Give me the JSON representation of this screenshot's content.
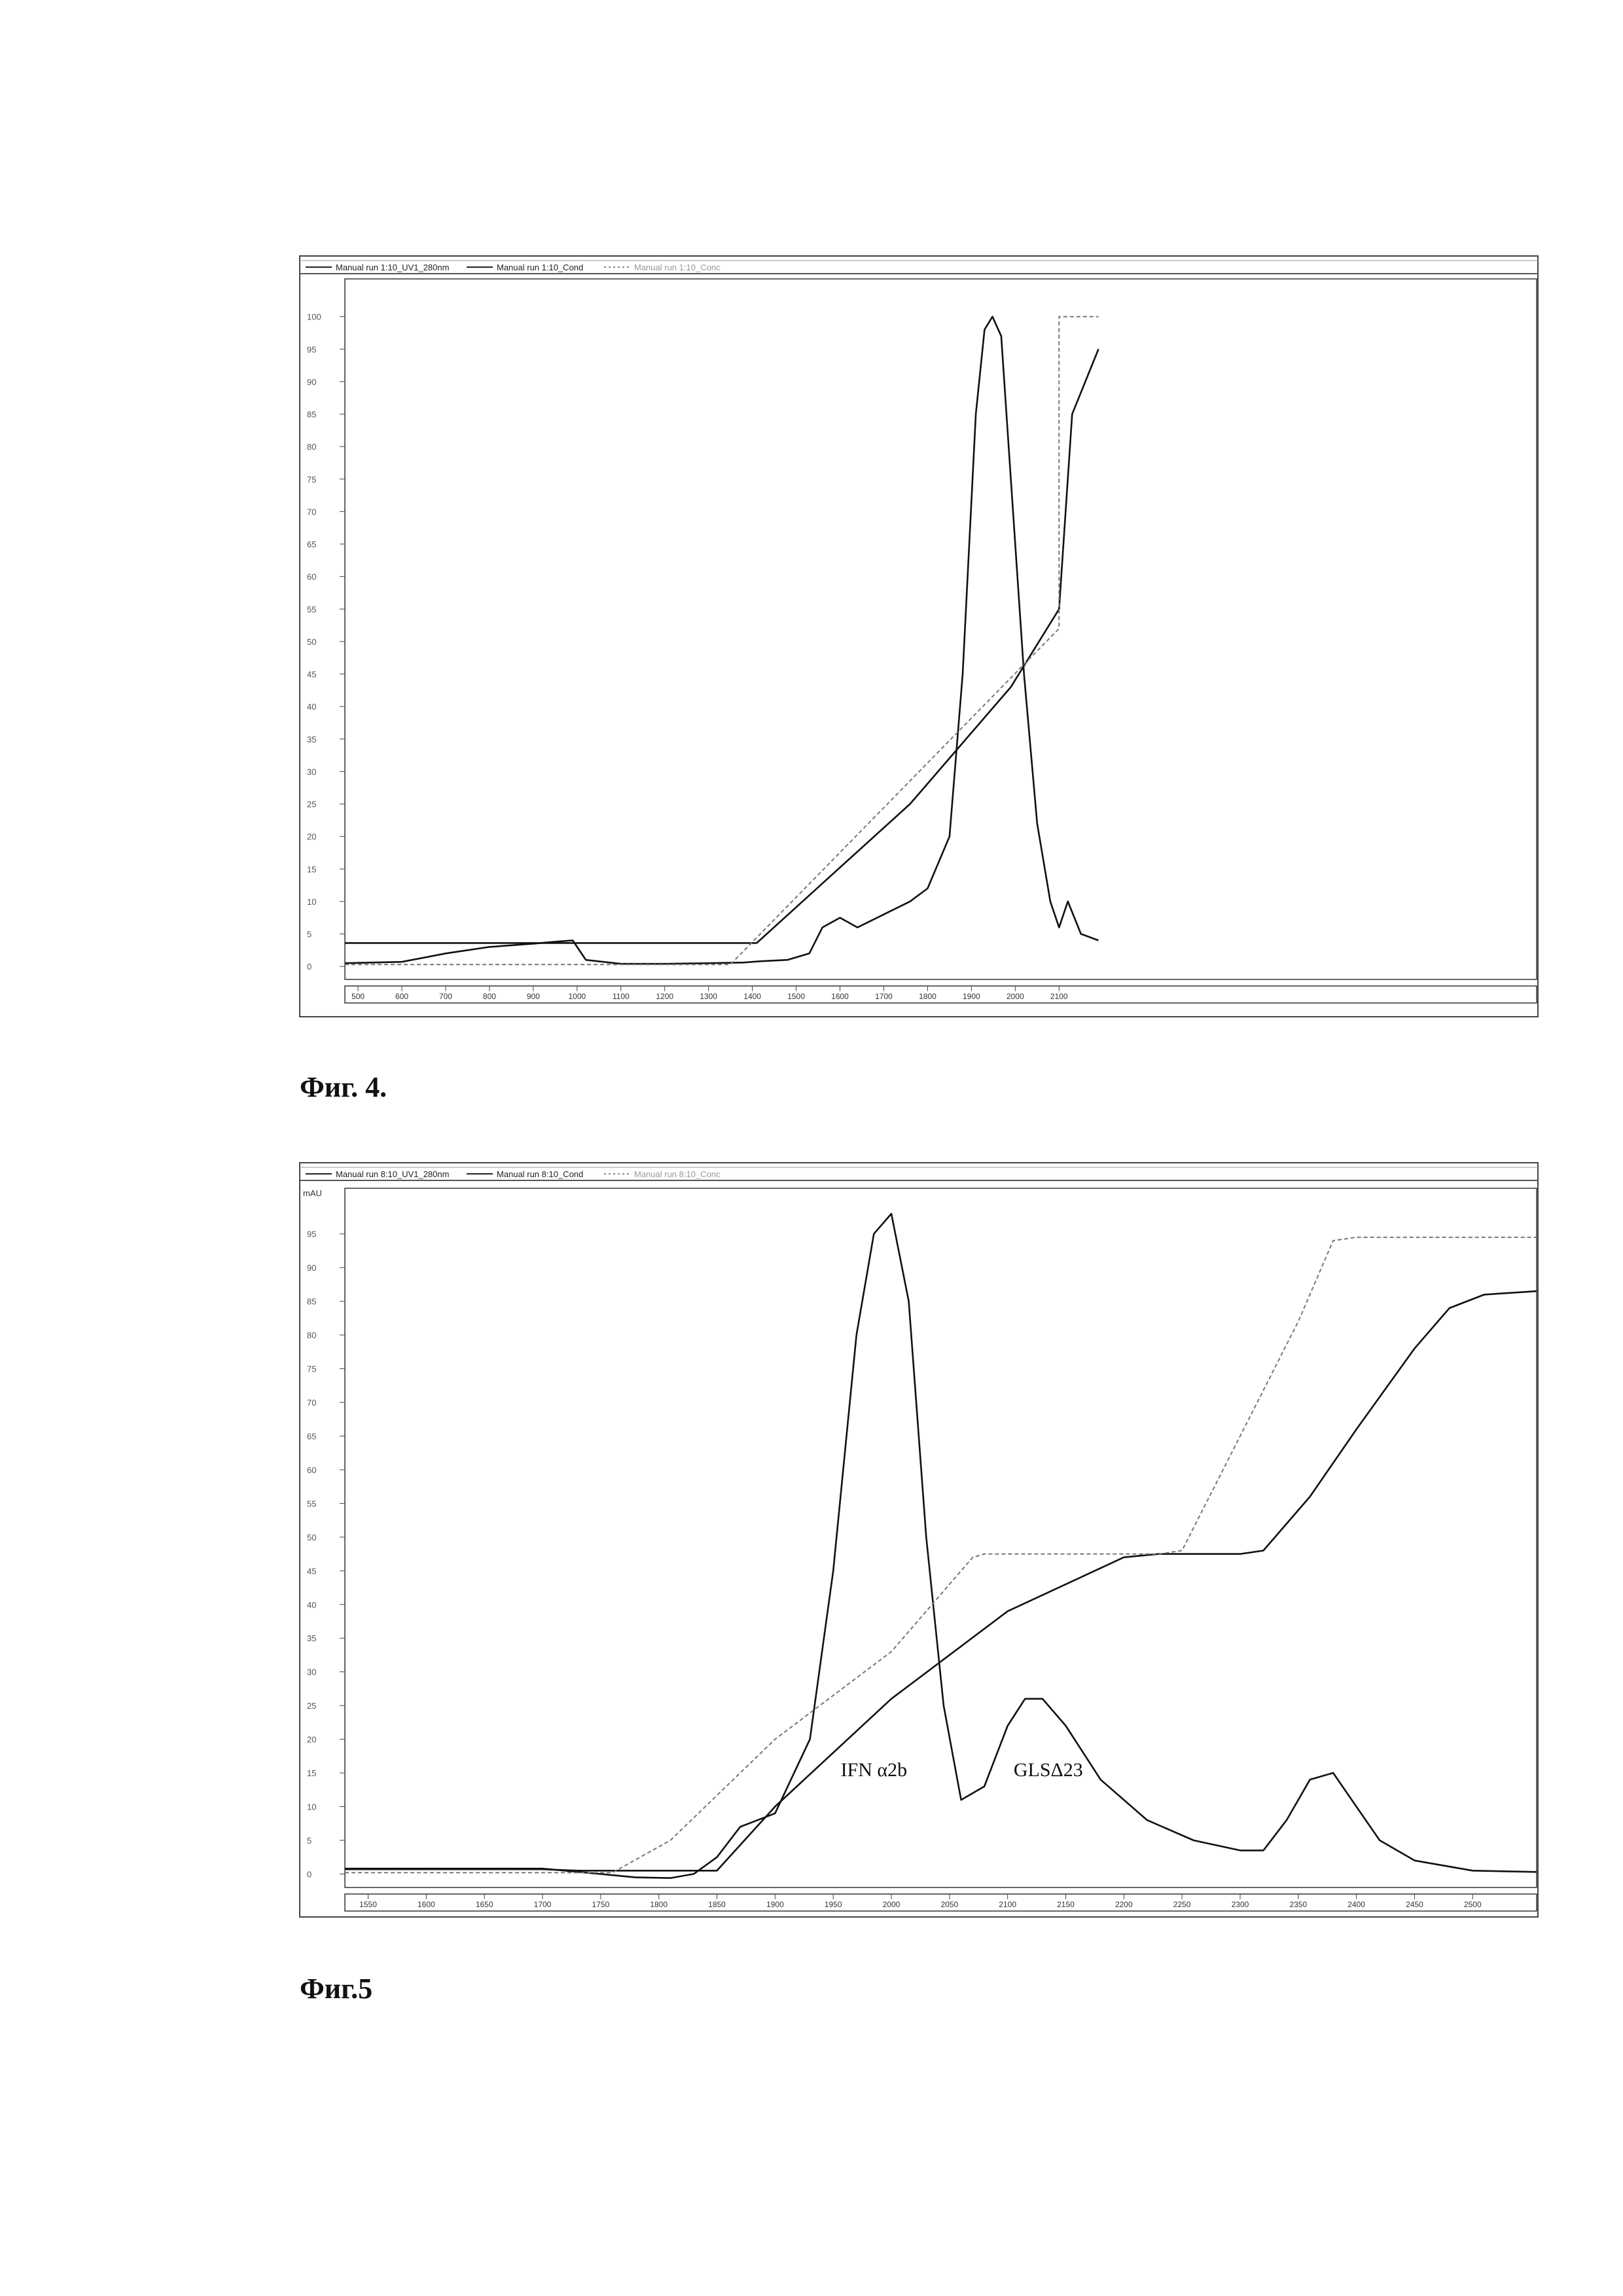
{
  "figures": [
    {
      "caption": "Фиг. 4."
    },
    {
      "caption": "Фиг.5"
    }
  ],
  "chart_data": [
    {
      "type": "line",
      "title": "",
      "xlabel": "",
      "ylabel": "",
      "unit_label": "",
      "xlim": [
        470,
        3190
      ],
      "ylim": [
        -2,
        105
      ],
      "grid": false,
      "legend_position": "top-left",
      "legend": [
        "Manual run 1:10_UV1_280nm",
        "Manual run 1:10_Cond",
        "Manual run 1:10_Conc"
      ],
      "x_ticks": [
        "500",
        "600",
        "700",
        "800",
        "900",
        "1000",
        "1100",
        "1200",
        "1300",
        "1400",
        "1500",
        "1600",
        "1700",
        "1800",
        "1900",
        "2000",
        "2100"
      ],
      "x_tick_values": [
        500,
        600,
        700,
        800,
        900,
        1000,
        1100,
        1200,
        1300,
        1400,
        1500,
        1600,
        1700,
        1800,
        1900,
        2000,
        2100
      ],
      "y_ticks": [
        "0",
        "5",
        "10",
        "15",
        "20",
        "25",
        "30",
        "35",
        "40",
        "45",
        "50",
        "55",
        "60",
        "65",
        "70",
        "75",
        "80",
        "85",
        "90",
        "95",
        "100"
      ],
      "y_tick_values": [
        0,
        5,
        10,
        15,
        20,
        25,
        30,
        35,
        40,
        45,
        50,
        55,
        60,
        65,
        70,
        75,
        80,
        85,
        90,
        95,
        100
      ],
      "annotations": [],
      "series": [
        {
          "style": "solid",
          "x": [
            470,
            600,
            700,
            800,
            900,
            950,
            990,
            1020,
            1100,
            1200,
            1300,
            1380,
            1420,
            1480,
            1530,
            1560,
            1600,
            1640,
            1700,
            1760,
            1800,
            1850,
            1880,
            1910,
            1930,
            1948,
            1968,
            1990,
            2020,
            2050,
            2080,
            2100,
            2120,
            2150,
            2190
          ],
          "y": [
            0.5,
            0.7,
            2,
            3,
            3.5,
            3.8,
            4,
            1,
            0.4,
            0.4,
            0.5,
            0.6,
            0.8,
            1,
            2,
            6,
            7.5,
            6,
            8,
            10,
            12,
            20,
            45,
            85,
            98,
            100,
            97,
            75,
            45,
            22,
            10,
            6,
            10,
            5,
            4
          ]
        },
        {
          "style": "solid",
          "x": [
            470,
            1390,
            1410,
            1580,
            1760,
            1990,
            2100,
            2130,
            2160,
            2190
          ],
          "y": [
            3.6,
            3.6,
            3.6,
            14,
            25,
            43,
            55,
            85,
            90,
            95
          ]
        },
        {
          "style": "dotted",
          "x": [
            470,
            1350,
            2100,
            2100,
            2190
          ],
          "y": [
            0.3,
            0.3,
            52,
            100,
            100
          ]
        }
      ]
    },
    {
      "type": "line",
      "title": "",
      "xlabel": "",
      "ylabel": "",
      "unit_label": "mAU",
      "xlim": [
        1530,
        2555
      ],
      "ylim": [
        -2,
        101
      ],
      "grid": false,
      "legend_position": "top-left",
      "legend": [
        "Manual run 8:10_UV1_280nm",
        "Manual run 8:10_Cond",
        "Manual run 8:10_Conc"
      ],
      "x_ticks": [
        "1550",
        "1600",
        "1650",
        "1700",
        "1750",
        "1800",
        "1850",
        "1900",
        "1950",
        "2000",
        "2050",
        "2100",
        "2150",
        "2200",
        "2250",
        "2300",
        "2350",
        "2400",
        "2450",
        "2500"
      ],
      "x_tick_values": [
        1550,
        1600,
        1650,
        1700,
        1750,
        1800,
        1850,
        1900,
        1950,
        2000,
        2050,
        2100,
        2150,
        2200,
        2250,
        2300,
        2350,
        2400,
        2450,
        2500
      ],
      "y_ticks": [
        "0",
        "5",
        "10",
        "15",
        "20",
        "25",
        "30",
        "35",
        "40",
        "45",
        "50",
        "55",
        "60",
        "65",
        "70",
        "75",
        "80",
        "85",
        "90",
        "95"
      ],
      "y_tick_values": [
        0,
        5,
        10,
        15,
        20,
        25,
        30,
        35,
        40,
        45,
        50,
        55,
        60,
        65,
        70,
        75,
        80,
        85,
        90,
        95
      ],
      "annotations": [
        {
          "text": "IFN α2b",
          "x": 1985,
          "y": 14.5
        },
        {
          "text": "GLSΔ23",
          "x": 2135,
          "y": 14.5
        }
      ],
      "series": [
        {
          "style": "solid",
          "x": [
            1530,
            1600,
            1650,
            1700,
            1750,
            1780,
            1810,
            1830,
            1850,
            1870,
            1900,
            1930,
            1950,
            1970,
            1985,
            2000,
            2015,
            2030,
            2045,
            2060,
            2080,
            2100,
            2115,
            2130,
            2150,
            2180,
            2220,
            2260,
            2300,
            2320,
            2340,
            2360,
            2380,
            2400,
            2420,
            2450,
            2500,
            2555
          ],
          "y": [
            0.8,
            0.8,
            0.8,
            0.8,
            0,
            -0.5,
            -0.6,
            0,
            2.5,
            7,
            9,
            20,
            45,
            80,
            95,
            98,
            85,
            50,
            25,
            11,
            13,
            22,
            26,
            26,
            22,
            14,
            8,
            5,
            3.5,
            3.5,
            8,
            14,
            15,
            10,
            5,
            2,
            0.5,
            0.3
          ]
        },
        {
          "style": "solid",
          "x": [
            1530,
            1700,
            1730,
            1850,
            1900,
            2000,
            2100,
            2200,
            2230,
            2300,
            2320,
            2360,
            2400,
            2450,
            2480,
            2510,
            2555
          ],
          "y": [
            0.7,
            0.7,
            0.5,
            0.5,
            10,
            26,
            39,
            47,
            47.5,
            47.5,
            48,
            56,
            66,
            78,
            84,
            86,
            86.5
          ]
        },
        {
          "style": "dotted",
          "x": [
            1530,
            1760,
            1810,
            1900,
            2000,
            2070,
            2080,
            2230,
            2250,
            2300,
            2350,
            2380,
            2400,
            2555
          ],
          "y": [
            0.2,
            0.2,
            5,
            20,
            33,
            47,
            47.5,
            47.5,
            48,
            65,
            82,
            94,
            94.5,
            94.5
          ]
        }
      ]
    }
  ]
}
